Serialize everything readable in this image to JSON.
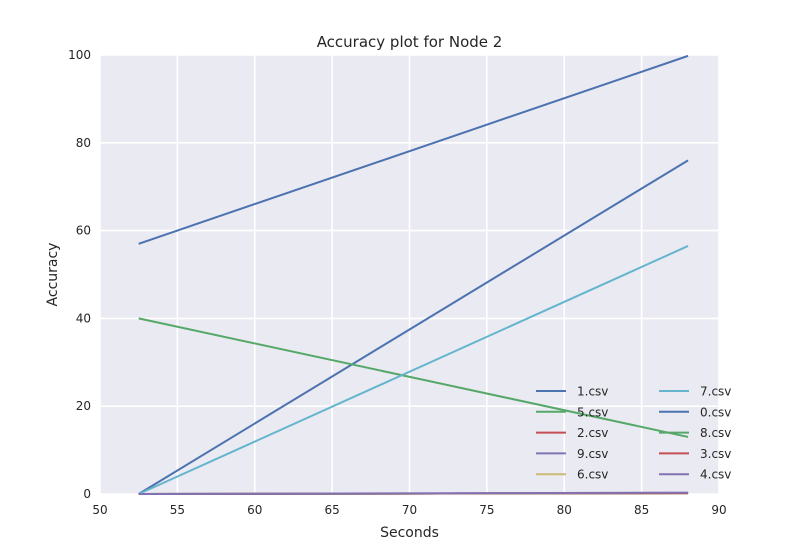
{
  "chart_data": {
    "type": "line",
    "title": "Accuracy plot for Node 2",
    "xlabel": "Seconds",
    "ylabel": "Accuracy",
    "xlim": [
      50,
      90
    ],
    "ylim": [
      0,
      100
    ],
    "xticks": [
      "50",
      "55",
      "60",
      "65",
      "70",
      "75",
      "80",
      "85",
      "90"
    ],
    "yticks": [
      "0",
      "20",
      "40",
      "60",
      "80",
      "100"
    ],
    "grid": true,
    "legend_position": "lower-right",
    "legend_columns": 2,
    "background_color": "#EAEAF2",
    "series": [
      {
        "name": "1.csv",
        "color": "#4C72B0",
        "x": [
          52.5,
          88
        ],
        "y": [
          0,
          76
        ]
      },
      {
        "name": "5.csv",
        "color": "#55A868",
        "x": [
          52.5,
          88
        ],
        "y": [
          40,
          13
        ]
      },
      {
        "name": "2.csv",
        "color": "#C44E52",
        "x": [
          52.5,
          88
        ],
        "y": [
          0,
          0.2
        ]
      },
      {
        "name": "9.csv",
        "color": "#8172B2",
        "x": [
          52.5,
          88
        ],
        "y": [
          0,
          0.2
        ]
      },
      {
        "name": "6.csv",
        "color": "#CCB974",
        "x": [
          52.5,
          88
        ],
        "y": [
          0,
          0.2
        ]
      },
      {
        "name": "7.csv",
        "color": "#64B5CD",
        "x": [
          52.5,
          88
        ],
        "y": [
          0,
          56.5
        ]
      },
      {
        "name": "0.csv",
        "color": "#4C72B0",
        "x": [
          52.5,
          88
        ],
        "y": [
          57,
          99.8
        ]
      },
      {
        "name": "8.csv",
        "color": "#55A868",
        "x": [
          52.5,
          88
        ],
        "y": [
          0,
          0.2
        ]
      },
      {
        "name": "3.csv",
        "color": "#C44E52",
        "x": [
          52.5,
          88
        ],
        "y": [
          0,
          0.2
        ]
      },
      {
        "name": "4.csv",
        "color": "#8172B2",
        "x": [
          52.5,
          88
        ],
        "y": [
          0,
          0.3
        ]
      }
    ]
  }
}
